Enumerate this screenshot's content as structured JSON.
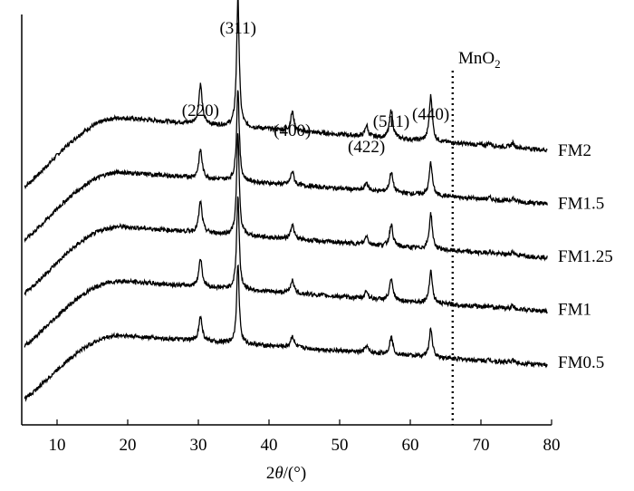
{
  "chart_data": {
    "type": "line",
    "xlabel_prefix": "2",
    "xlabel_var": "θ",
    "xlabel_suffix": "/(°)",
    "xlim": [
      5,
      80
    ],
    "xticks": [
      10,
      20,
      30,
      40,
      50,
      60,
      70,
      80
    ],
    "peaks": [
      {
        "label": "(220)",
        "x": 30.3
      },
      {
        "label": "(311)",
        "x": 35.6
      },
      {
        "label": "(400)",
        "x": 43.3
      },
      {
        "label": "(422)",
        "x": 53.8
      },
      {
        "label": "(511)",
        "x": 57.3
      },
      {
        "label": "(440)",
        "x": 62.9
      }
    ],
    "reference_line": {
      "x": 66.0,
      "label": "MnO",
      "label_sub": "2",
      "style": "dotted"
    },
    "series": [
      {
        "name": "FM2",
        "baseline_offset": 4
      },
      {
        "name": "FM1.5",
        "baseline_offset": 3
      },
      {
        "name": "FM1.25",
        "baseline_offset": 2
      },
      {
        "name": "FM1",
        "baseline_offset": 1
      },
      {
        "name": "FM0.5",
        "baseline_offset": 0
      }
    ],
    "grid": false,
    "legend": "none"
  }
}
